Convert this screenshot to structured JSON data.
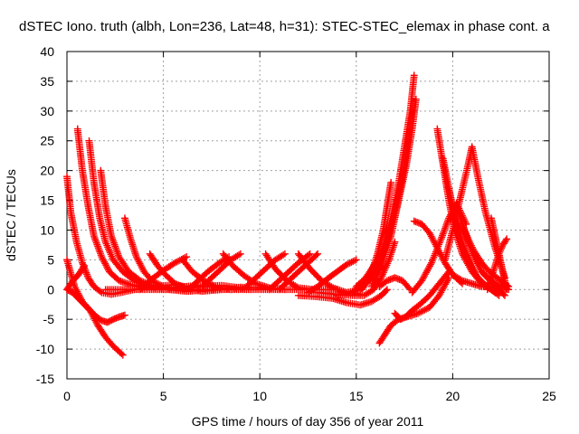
{
  "chart_data": {
    "type": "scatter",
    "title": "dSTEC Iono. truth (albh, Lon=236, Lat=48, h=31): STEC-STEC_elemax in phase cont. a",
    "xlabel": "GPS time / hours of day 356 of year 2011",
    "ylabel": "dSTEC  / TECUs",
    "xlim": [
      0,
      25
    ],
    "ylim": [
      -15,
      40
    ],
    "x_ticks": [
      0,
      5,
      10,
      15,
      20,
      25
    ],
    "y_ticks": [
      -15,
      -10,
      -5,
      0,
      5,
      10,
      15,
      20,
      25,
      30,
      35,
      40
    ],
    "grid": true,
    "marker": "plus",
    "color": "#ff0000",
    "series": [
      {
        "x": [
          0.0,
          0.2,
          0.5,
          0.8,
          1.1,
          1.4,
          1.8,
          2.3,
          2.8,
          3.5,
          4.5,
          5.5,
          6.5
        ],
        "y": [
          19,
          13,
          8,
          4.5,
          2,
          0.5,
          -0.5,
          -0.8,
          -0.5,
          0,
          0.5,
          0.8,
          0.3
        ]
      },
      {
        "x": [
          0.0,
          0.4,
          0.8,
          1.2,
          1.6,
          2.0,
          2.4,
          2.9
        ],
        "y": [
          5,
          0.5,
          -2,
          -3.5,
          -6,
          -8,
          -9.5,
          -11
        ]
      },
      {
        "x": [
          0.0,
          0.3,
          0.6,
          0.9,
          1.2,
          1.5,
          1.8,
          2.1,
          2.4,
          2.7,
          3.0
        ],
        "y": [
          0,
          -0.5,
          -1.5,
          -2.5,
          -3.5,
          -4.5,
          -5.2,
          -5.5,
          -5.0,
          -4.6,
          -4.3
        ]
      },
      {
        "x": [
          0.0,
          0.3,
          0.6,
          0.9
        ],
        "y": [
          0,
          1.5,
          2.5,
          4
        ]
      },
      {
        "x": [
          0.55,
          0.8,
          1.1,
          1.4,
          1.8,
          2.2,
          2.7,
          3.3,
          4.0,
          5.0,
          6.0,
          7.0,
          8.0
        ],
        "y": [
          27,
          20,
          14,
          9,
          5.5,
          3,
          1.5,
          0.8,
          0.3,
          0.2,
          0.5,
          0.7,
          0.2
        ]
      },
      {
        "x": [
          1.15,
          1.4,
          1.7,
          2.0,
          2.4,
          2.9,
          3.5,
          4.2,
          5.0,
          6.0,
          7.0,
          8.0,
          9.0
        ],
        "y": [
          25,
          18,
          12,
          8,
          5,
          3,
          1.5,
          0.5,
          0,
          0.2,
          0.5,
          0.7,
          0.3
        ]
      },
      {
        "x": [
          1.75,
          2.0,
          2.3,
          2.7,
          3.2,
          3.8,
          4.5,
          5.3,
          6.2,
          7.5,
          9.0,
          10.5
        ],
        "y": [
          20,
          14,
          9,
          5.5,
          3,
          1.5,
          0.5,
          0,
          -0.3,
          0,
          0.4,
          0.2
        ]
      },
      {
        "x": [
          3.0,
          3.3,
          3.6,
          4.0,
          4.4,
          5.0,
          5.7,
          6.5,
          7.5,
          8.5,
          9.5
        ],
        "y": [
          12,
          8.5,
          5.5,
          3,
          1.5,
          0.5,
          0,
          -0.2,
          0,
          0.3,
          0
        ]
      },
      {
        "x": [
          4.3,
          4.7,
          5.1,
          5.6,
          6.2,
          7.0,
          8.0,
          9.0
        ],
        "y": [
          6,
          4,
          2.5,
          1,
          0.2,
          -0.3,
          0,
          0.2
        ]
      },
      {
        "x": [
          3.8,
          4.3,
          4.9,
          5.6,
          6.2
        ],
        "y": [
          0,
          1.5,
          3,
          4.5,
          5.5
        ]
      },
      {
        "x": [
          6.0,
          6.5,
          7.1,
          7.7,
          8.5,
          9.3
        ],
        "y": [
          5,
          3,
          1.5,
          0.5,
          0,
          0.3
        ]
      },
      {
        "x": [
          6.3,
          6.8,
          7.3,
          7.9,
          8.4
        ],
        "y": [
          0,
          1.5,
          3,
          4.5,
          5.5
        ]
      },
      {
        "x": [
          7.0,
          7.5,
          8.0,
          8.5,
          9.0
        ],
        "y": [
          0.5,
          2,
          3.5,
          5,
          6
        ]
      },
      {
        "x": [
          8.1,
          8.6,
          9.2,
          9.8,
          10.5,
          11.3
        ],
        "y": [
          6,
          4,
          2.3,
          1,
          0.3,
          0
        ]
      },
      {
        "x": [
          9.3,
          9.8,
          10.3,
          10.8,
          11.3
        ],
        "y": [
          0.5,
          2,
          3.5,
          5,
          6
        ]
      },
      {
        "x": [
          10.3,
          10.8,
          11.4,
          12.0,
          12.8
        ],
        "y": [
          6,
          3.5,
          1.5,
          0.3,
          0
        ]
      },
      {
        "x": [
          10.5,
          11.0,
          11.5,
          12.0,
          12.6
        ],
        "y": [
          0,
          1.5,
          3,
          4.5,
          6
        ]
      },
      {
        "x": [
          11.0,
          11.5,
          12.0,
          12.5,
          13.0
        ],
        "y": [
          0,
          1.5,
          3,
          4.5,
          6
        ]
      },
      {
        "x": [
          12.0,
          12.6,
          13.2,
          13.8,
          14.5,
          15.2
        ],
        "y": [
          6,
          3.5,
          1.5,
          0.3,
          -0.5,
          -0.8
        ]
      },
      {
        "x": [
          12.5,
          13.0,
          13.5,
          14.0,
          14.5,
          15.0
        ],
        "y": [
          -0.5,
          0.5,
          1.8,
          3,
          4.2,
          5
        ]
      },
      {
        "x": [
          2.0,
          3.0,
          4.0,
          5.0,
          6.0,
          7.0,
          8.0,
          9.0,
          10.0,
          11.0,
          12.0,
          13.0,
          14.0
        ],
        "y": [
          0,
          0,
          0,
          0,
          0,
          0,
          0,
          0,
          0,
          0,
          0,
          0,
          0
        ]
      },
      {
        "x": [
          12.0,
          13.0,
          13.8,
          14.5,
          15.2,
          15.8,
          16.3,
          16.6
        ],
        "y": [
          -1,
          -1.2,
          -1.5,
          -2.2,
          -2.6,
          -2,
          -1,
          0
        ]
      },
      {
        "x": [
          13.0,
          14.0,
          14.8,
          15.4,
          15.9,
          16.3,
          16.7,
          17.0
        ],
        "y": [
          -0.5,
          -0.8,
          -1,
          -1,
          0,
          2,
          5,
          8
        ]
      },
      {
        "x": [
          14.0,
          14.8,
          15.4,
          15.8,
          16.1,
          16.4,
          16.6,
          16.8
        ],
        "y": [
          -1,
          -0.5,
          1,
          3,
          6,
          10,
          14,
          18
        ]
      },
      {
        "x": [
          15.0,
          15.5,
          15.9,
          16.2,
          16.5
        ],
        "y": [
          0.5,
          2,
          4,
          5.5,
          7
        ]
      },
      {
        "x": [
          14.5,
          15.2,
          15.8,
          16.3,
          16.7,
          17.1,
          17.4,
          17.6,
          17.8
        ],
        "y": [
          -0.5,
          0,
          2,
          5,
          9,
          14,
          19,
          23,
          27
        ]
      },
      {
        "x": [
          15.3,
          15.9,
          16.4,
          16.8,
          17.2,
          17.5,
          17.8,
          18.0
        ],
        "y": [
          0,
          3,
          7,
          12,
          18,
          24,
          30,
          36
        ]
      },
      {
        "x": [
          15.8,
          16.3,
          16.8,
          17.2,
          17.6,
          17.9,
          18.1
        ],
        "y": [
          0.5,
          4,
          9,
          15,
          21,
          27,
          32
        ]
      },
      {
        "x": [
          16.2,
          16.5,
          16.8,
          17.2,
          17.7,
          18.2,
          18.8,
          19.3,
          19.8
        ],
        "y": [
          -9,
          -7.5,
          -6,
          -5,
          -4.5,
          -4,
          -3,
          -1,
          2
        ]
      },
      {
        "x": [
          17.0,
          17.3,
          17.6,
          17.9,
          18.3,
          18.8,
          19.3,
          19.8
        ],
        "y": [
          -4,
          -5,
          -4.5,
          -3.5,
          -2.5,
          -1,
          1,
          3
        ]
      },
      {
        "x": [
          16.2,
          16.6,
          17.0,
          17.4,
          17.8
        ],
        "y": [
          0.5,
          1.5,
          2,
          1.5,
          0
        ]
      },
      {
        "x": [
          18.0,
          18.4,
          18.8,
          19.2,
          19.6,
          20.0,
          20.5
        ],
        "y": [
          11.5,
          11,
          9.5,
          7,
          4.5,
          2.5,
          1
        ]
      },
      {
        "x": [
          17.9,
          18.4,
          18.9,
          19.4,
          19.8,
          20.2,
          20.7
        ],
        "y": [
          -0.5,
          1.5,
          4.5,
          8.5,
          12,
          14.5,
          11
        ]
      },
      {
        "x": [
          19.2,
          19.5,
          19.8,
          20.1,
          20.5,
          21.0,
          21.5,
          22.0
        ],
        "y": [
          27,
          21,
          15,
          10,
          6,
          3,
          1,
          0
        ]
      },
      {
        "x": [
          19.5,
          19.8,
          20.1,
          20.4,
          20.8,
          21.2,
          21.6,
          22.0,
          22.4
        ],
        "y": [
          22,
          17,
          12,
          8,
          5,
          2.5,
          1,
          0,
          -1
        ]
      },
      {
        "x": [
          19.8,
          20.1,
          20.4,
          20.7,
          21.0,
          21.4,
          21.8,
          22.2
        ],
        "y": [
          17,
          12.5,
          9,
          6,
          3.5,
          1.5,
          0.5,
          -0.5
        ]
      },
      {
        "x": [
          19.6,
          20.0,
          20.4,
          20.8,
          21.0,
          21.3,
          21.7,
          22.2,
          22.7
        ],
        "y": [
          5,
          10,
          15.5,
          21,
          24,
          19,
          13,
          7,
          2
        ]
      },
      {
        "x": [
          20.2,
          20.5,
          20.8,
          21.1,
          21.5,
          22.0,
          22.5,
          22.9
        ],
        "y": [
          14,
          11,
          8,
          5.5,
          3,
          1.5,
          0.5,
          0
        ]
      },
      {
        "x": [
          20.5,
          20.8,
          21.1,
          21.5,
          21.9,
          22.3,
          22.7,
          22.9
        ],
        "y": [
          11,
          8.5,
          6.5,
          4.5,
          3,
          2,
          1,
          0.5
        ]
      },
      {
        "x": [
          20.0,
          20.5,
          21.0,
          21.5,
          22.0,
          22.5
        ],
        "y": [
          2.5,
          1.5,
          1,
          0.5,
          0.5,
          0.5
        ]
      },
      {
        "x": [
          21.8,
          22.0,
          22.2,
          22.4,
          22.6,
          22.8
        ],
        "y": [
          0,
          2,
          4,
          6,
          7.5,
          8.5
        ]
      },
      {
        "x": [
          22.0,
          22.2,
          22.4,
          22.6,
          22.8
        ],
        "y": [
          12,
          9,
          6,
          3,
          0
        ]
      },
      {
        "x": [
          21.5,
          21.8,
          22.1,
          22.4,
          22.7
        ],
        "y": [
          3,
          2,
          1,
          0,
          -1
        ]
      }
    ]
  }
}
